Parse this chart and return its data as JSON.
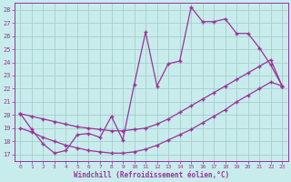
{
  "xlabel": "Windchill (Refroidissement éolien,°C)",
  "xlim": [
    -0.5,
    23.5
  ],
  "ylim": [
    16.5,
    28.5
  ],
  "yticks": [
    17,
    18,
    19,
    20,
    21,
    22,
    23,
    24,
    25,
    26,
    27,
    28
  ],
  "xticks": [
    0,
    1,
    2,
    3,
    4,
    5,
    6,
    7,
    8,
    9,
    10,
    11,
    12,
    13,
    14,
    15,
    16,
    17,
    18,
    19,
    20,
    21,
    22,
    23
  ],
  "bg_color": "#c8ecec",
  "grid_color": "#a0c8c8",
  "line_color": "#993399",
  "line1_x": [
    0,
    1,
    2,
    3,
    4,
    5,
    6,
    7,
    8,
    9,
    10,
    11,
    12,
    13,
    14,
    15,
    16,
    17,
    18,
    19,
    20,
    21,
    22,
    23
  ],
  "line1_y": [
    20.1,
    18.9,
    17.8,
    17.1,
    17.3,
    18.5,
    18.6,
    18.3,
    19.9,
    18.1,
    22.3,
    26.3,
    22.2,
    23.9,
    24.1,
    28.2,
    27.1,
    27.1,
    27.3,
    26.2,
    26.2,
    25.1,
    23.8,
    22.2
  ],
  "line2_x": [
    0,
    1,
    2,
    3,
    4,
    5,
    6,
    7,
    8,
    9,
    10,
    11,
    12,
    13,
    14,
    15,
    16,
    17,
    18,
    19,
    20,
    21,
    22,
    23
  ],
  "line2_y": [
    19.0,
    18.7,
    18.3,
    18.0,
    17.7,
    17.5,
    17.3,
    17.2,
    17.1,
    17.1,
    17.2,
    17.4,
    17.7,
    18.1,
    18.5,
    18.9,
    19.4,
    19.9,
    20.4,
    21.0,
    21.5,
    22.0,
    22.5,
    22.2
  ],
  "line3_x": [
    0,
    1,
    2,
    3,
    4,
    5,
    6,
    7,
    8,
    9,
    10,
    11,
    12,
    13,
    14,
    15,
    16,
    17,
    18,
    19,
    20,
    21,
    22,
    23
  ],
  "line3_y": [
    20.1,
    19.9,
    19.7,
    19.5,
    19.3,
    19.1,
    19.0,
    18.9,
    18.8,
    18.8,
    18.9,
    19.0,
    19.3,
    19.7,
    20.2,
    20.7,
    21.2,
    21.7,
    22.2,
    22.7,
    23.2,
    23.7,
    24.2,
    22.2
  ]
}
